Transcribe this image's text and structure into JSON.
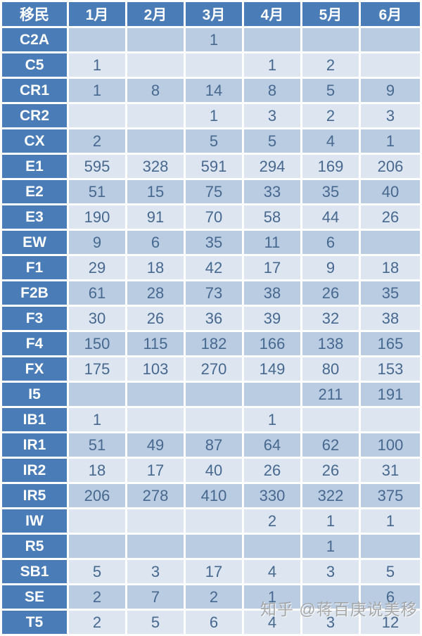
{
  "table": {
    "corner_label": "移民",
    "columns": [
      "1月",
      "2月",
      "3月",
      "4月",
      "5月",
      "6月"
    ],
    "rows": [
      {
        "label": "C2A",
        "values": [
          "",
          "",
          "1",
          "",
          "",
          ""
        ]
      },
      {
        "label": "C5",
        "values": [
          "1",
          "",
          "",
          "1",
          "2",
          ""
        ]
      },
      {
        "label": "CR1",
        "values": [
          "1",
          "8",
          "14",
          "8",
          "5",
          "9"
        ]
      },
      {
        "label": "CR2",
        "values": [
          "",
          "",
          "1",
          "3",
          "2",
          "3"
        ]
      },
      {
        "label": "CX",
        "values": [
          "2",
          "",
          "5",
          "5",
          "4",
          "1"
        ]
      },
      {
        "label": "E1",
        "values": [
          "595",
          "328",
          "591",
          "294",
          "169",
          "206"
        ]
      },
      {
        "label": "E2",
        "values": [
          "51",
          "15",
          "75",
          "33",
          "35",
          "40"
        ]
      },
      {
        "label": "E3",
        "values": [
          "190",
          "91",
          "70",
          "58",
          "44",
          "26"
        ]
      },
      {
        "label": "EW",
        "values": [
          "9",
          "6",
          "35",
          "11",
          "6",
          ""
        ]
      },
      {
        "label": "F1",
        "values": [
          "29",
          "18",
          "42",
          "17",
          "9",
          "18"
        ]
      },
      {
        "label": "F2B",
        "values": [
          "61",
          "28",
          "73",
          "38",
          "26",
          "35"
        ]
      },
      {
        "label": "F3",
        "values": [
          "30",
          "26",
          "36",
          "39",
          "32",
          "38"
        ]
      },
      {
        "label": "F4",
        "values": [
          "150",
          "115",
          "182",
          "166",
          "138",
          "165"
        ]
      },
      {
        "label": "FX",
        "values": [
          "175",
          "103",
          "270",
          "149",
          "80",
          "153"
        ]
      },
      {
        "label": "I5",
        "values": [
          "",
          "",
          "",
          "",
          "211",
          "191"
        ]
      },
      {
        "label": "IB1",
        "values": [
          "1",
          "",
          "",
          "1",
          "",
          ""
        ]
      },
      {
        "label": "IR1",
        "values": [
          "51",
          "49",
          "87",
          "64",
          "62",
          "100"
        ]
      },
      {
        "label": "IR2",
        "values": [
          "18",
          "17",
          "40",
          "26",
          "26",
          "31"
        ]
      },
      {
        "label": "IR5",
        "values": [
          "206",
          "278",
          "410",
          "330",
          "322",
          "375"
        ]
      },
      {
        "label": "IW",
        "values": [
          "",
          "",
          "",
          "2",
          "1",
          "1"
        ]
      },
      {
        "label": "R5",
        "values": [
          "",
          "",
          "",
          "",
          "1",
          ""
        ]
      },
      {
        "label": "SB1",
        "values": [
          "5",
          "3",
          "17",
          "4",
          "3",
          "5"
        ]
      },
      {
        "label": "SE",
        "values": [
          "2",
          "7",
          "2",
          "1",
          "",
          "6"
        ]
      },
      {
        "label": "T5",
        "values": [
          "2",
          "5",
          "6",
          "4",
          "3",
          "12"
        ]
      }
    ]
  },
  "watermark": "知乎 @蒋百庚说美移",
  "colors": {
    "header_bg": "#4a7db8",
    "header_text": "#ffffff",
    "band_dark": "#b9cce2",
    "band_light": "#dce5f0",
    "number_text": "#47688f"
  },
  "chart_data": {
    "type": "table",
    "title": "",
    "corner_label": "移民",
    "categories": [
      "1月",
      "2月",
      "3月",
      "4月",
      "5月",
      "6月"
    ],
    "series": [
      {
        "name": "C2A",
        "values": [
          null,
          null,
          1,
          null,
          null,
          null
        ]
      },
      {
        "name": "C5",
        "values": [
          1,
          null,
          null,
          1,
          2,
          null
        ]
      },
      {
        "name": "CR1",
        "values": [
          1,
          8,
          14,
          8,
          5,
          9
        ]
      },
      {
        "name": "CR2",
        "values": [
          null,
          null,
          1,
          3,
          2,
          3
        ]
      },
      {
        "name": "CX",
        "values": [
          2,
          null,
          5,
          5,
          4,
          1
        ]
      },
      {
        "name": "E1",
        "values": [
          595,
          328,
          591,
          294,
          169,
          206
        ]
      },
      {
        "name": "E2",
        "values": [
          51,
          15,
          75,
          33,
          35,
          40
        ]
      },
      {
        "name": "E3",
        "values": [
          190,
          91,
          70,
          58,
          44,
          26
        ]
      },
      {
        "name": "EW",
        "values": [
          9,
          6,
          35,
          11,
          6,
          null
        ]
      },
      {
        "name": "F1",
        "values": [
          29,
          18,
          42,
          17,
          9,
          18
        ]
      },
      {
        "name": "F2B",
        "values": [
          61,
          28,
          73,
          38,
          26,
          35
        ]
      },
      {
        "name": "F3",
        "values": [
          30,
          26,
          36,
          39,
          32,
          38
        ]
      },
      {
        "name": "F4",
        "values": [
          150,
          115,
          182,
          166,
          138,
          165
        ]
      },
      {
        "name": "FX",
        "values": [
          175,
          103,
          270,
          149,
          80,
          153
        ]
      },
      {
        "name": "I5",
        "values": [
          null,
          null,
          null,
          null,
          211,
          191
        ]
      },
      {
        "name": "IB1",
        "values": [
          1,
          null,
          null,
          1,
          null,
          null
        ]
      },
      {
        "name": "IR1",
        "values": [
          51,
          49,
          87,
          64,
          62,
          100
        ]
      },
      {
        "name": "IR2",
        "values": [
          18,
          17,
          40,
          26,
          26,
          31
        ]
      },
      {
        "name": "IR5",
        "values": [
          206,
          278,
          410,
          330,
          322,
          375
        ]
      },
      {
        "name": "IW",
        "values": [
          null,
          null,
          null,
          2,
          1,
          1
        ]
      },
      {
        "name": "R5",
        "values": [
          null,
          null,
          null,
          null,
          1,
          null
        ]
      },
      {
        "name": "SB1",
        "values": [
          5,
          3,
          17,
          4,
          3,
          5
        ]
      },
      {
        "name": "SE",
        "values": [
          2,
          7,
          2,
          1,
          null,
          6
        ]
      },
      {
        "name": "T5",
        "values": [
          2,
          5,
          6,
          4,
          3,
          12
        ]
      }
    ]
  }
}
